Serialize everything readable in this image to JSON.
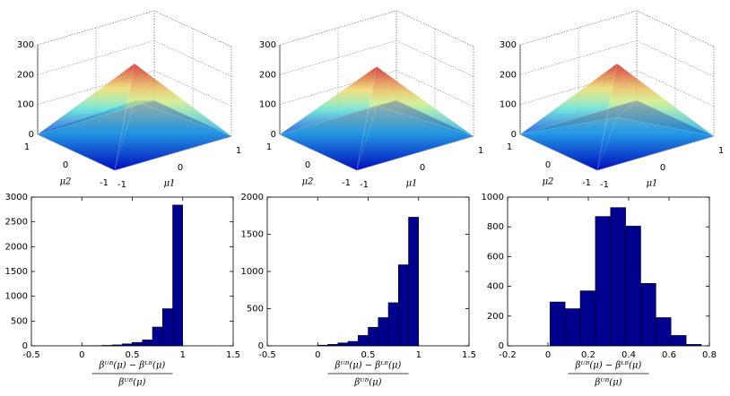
{
  "chart_data": [
    {
      "type": "surface3d",
      "xlabel": "μ1",
      "ylabel": "μ2",
      "xlim": [
        -1,
        1
      ],
      "ylim": [
        -1,
        1
      ],
      "zlim": [
        0,
        300
      ],
      "xticks": [
        -1,
        0,
        1
      ],
      "yticks": [
        -1,
        0,
        1
      ],
      "zticks": [
        0,
        100,
        200,
        300
      ],
      "surface_peaks": [
        240,
        115
      ]
    },
    {
      "type": "surface3d",
      "xlabel": "μ1",
      "ylabel": "μ2",
      "xlim": [
        -1,
        1
      ],
      "ylim": [
        -1,
        1
      ],
      "zlim": [
        0,
        300
      ],
      "xticks": [
        -1,
        0,
        1
      ],
      "yticks": [
        -1,
        0,
        1
      ],
      "zticks": [
        0,
        100,
        200,
        300
      ],
      "surface_peaks": [
        230,
        100
      ]
    },
    {
      "type": "surface3d",
      "xlabel": "μ1",
      "ylabel": "μ2",
      "xlim": [
        -1,
        1
      ],
      "ylim": [
        -1,
        1
      ],
      "zlim": [
        0,
        300
      ],
      "xticks": [
        -1,
        0,
        1
      ],
      "yticks": [
        -1,
        0,
        1
      ],
      "zticks": [
        0,
        100,
        200,
        300
      ],
      "surface_peaks": [
        240,
        60
      ]
    },
    {
      "type": "histogram",
      "color": "#00008f",
      "xlabel_numerator": "βᵁᴮ(μ) − βᴸᴮ(μ)",
      "xlabel_denominator": "βᵁᴮ(μ)",
      "bins": [
        0,
        0.1,
        0.2,
        0.3,
        0.4,
        0.5,
        0.6,
        0.7,
        0.8,
        0.9,
        1.0
      ],
      "counts": [
        2,
        5,
        10,
        20,
        40,
        70,
        120,
        380,
        750,
        2840
      ],
      "xlim": [
        -0.5,
        1.5
      ],
      "xticks": [
        -0.5,
        0,
        0.5,
        1,
        1.5
      ],
      "ylim": [
        0,
        3000
      ],
      "yticks": [
        0,
        500,
        1000,
        1500,
        2000,
        2500,
        3000
      ]
    },
    {
      "type": "histogram",
      "color": "#00008f",
      "xlabel_numerator": "βᵁᴮ(μ) − βᴸᴮ(μ)",
      "xlabel_denominator": "βᵁᴮ(μ)",
      "bins": [
        0,
        0.1,
        0.2,
        0.3,
        0.4,
        0.5,
        0.6,
        0.7,
        0.8,
        0.9,
        1.0
      ],
      "counts": [
        10,
        20,
        40,
        60,
        140,
        250,
        380,
        580,
        1090,
        1730
      ],
      "xlim": [
        -0.5,
        1.5
      ],
      "xticks": [
        -0.5,
        0,
        0.5,
        1,
        1.5
      ],
      "ylim": [
        0,
        2000
      ],
      "yticks": [
        0,
        500,
        1000,
        1500,
        2000
      ]
    },
    {
      "type": "histogram",
      "color": "#00008f",
      "xlabel_numerator": "βᵁᴮ(μ) − βᴸᴮ(μ)",
      "xlabel_denominator": "βᵁᴮ(μ)",
      "bins": [
        0.01,
        0.085,
        0.16,
        0.235,
        0.31,
        0.385,
        0.46,
        0.535,
        0.61,
        0.685,
        0.76
      ],
      "counts": [
        295,
        250,
        370,
        870,
        930,
        805,
        420,
        190,
        70,
        10
      ],
      "xlim": [
        -0.2,
        0.8
      ],
      "xticks": [
        -0.2,
        0,
        0.2,
        0.4,
        0.6,
        0.8
      ],
      "ylim": [
        0,
        1000
      ],
      "yticks": [
        0,
        200,
        400,
        600,
        800,
        1000
      ]
    }
  ]
}
